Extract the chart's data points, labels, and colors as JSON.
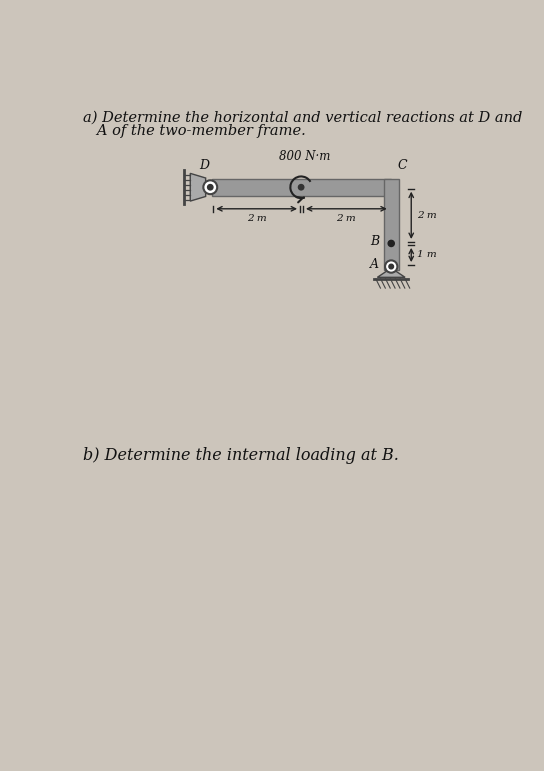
{
  "bg_color": "#ccc5bb",
  "text_color": "#111111",
  "part_a_line1": "a) Determine the horizontal and vertical reactions at D and",
  "part_a_line2": "   A of the two-member frame.",
  "part_b_text": "b) Determine the internal loading at B.",
  "moment_label": "800 N·m",
  "label_D": "D",
  "label_C": "C",
  "label_B": "B",
  "label_A": "A",
  "dim_2m_left": "2 m",
  "dim_2m_mid": "2 m",
  "dim_2m_right": "2 m",
  "dim_1m": "1 m",
  "beam_color": "#999999",
  "beam_edge": "#666666",
  "support_color": "#888888",
  "ground_color": "#555555"
}
